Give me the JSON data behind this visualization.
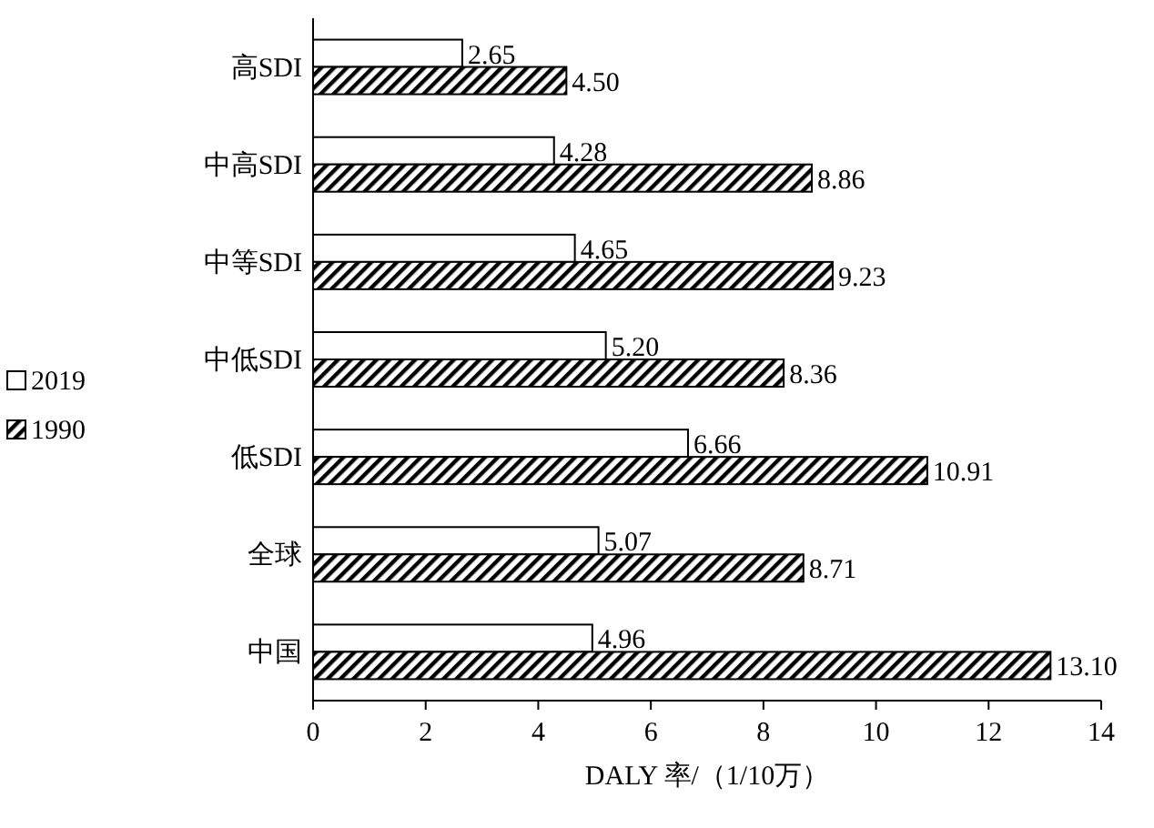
{
  "chart_data": {
    "type": "bar",
    "orientation": "horizontal",
    "xlabel": "DALY 率/（1/10万）",
    "categories": [
      "高SDI",
      "中高SDI",
      "中等SDI",
      "中低SDI",
      "低SDI",
      "全球",
      "中国"
    ],
    "series": [
      {
        "name": "2019",
        "color": "#ffffff",
        "values": [
          2.65,
          4.28,
          4.65,
          5.2,
          6.66,
          5.07,
          4.96
        ],
        "value_labels": [
          "2.65",
          "4.28",
          "4.65",
          "5.20",
          "6.66",
          "5.07",
          "4.96"
        ]
      },
      {
        "name": "1990",
        "color": "#000000",
        "values": [
          4.5,
          8.86,
          9.23,
          8.36,
          10.91,
          8.71,
          13.1
        ],
        "value_labels": [
          "4.50",
          "8.86",
          "9.23",
          "8.36",
          "10.91",
          "8.71",
          "13.10"
        ]
      }
    ],
    "xlim": [
      0,
      14
    ],
    "xticks": [
      0,
      2,
      4,
      6,
      8,
      10,
      12,
      14
    ],
    "legend": "left"
  }
}
